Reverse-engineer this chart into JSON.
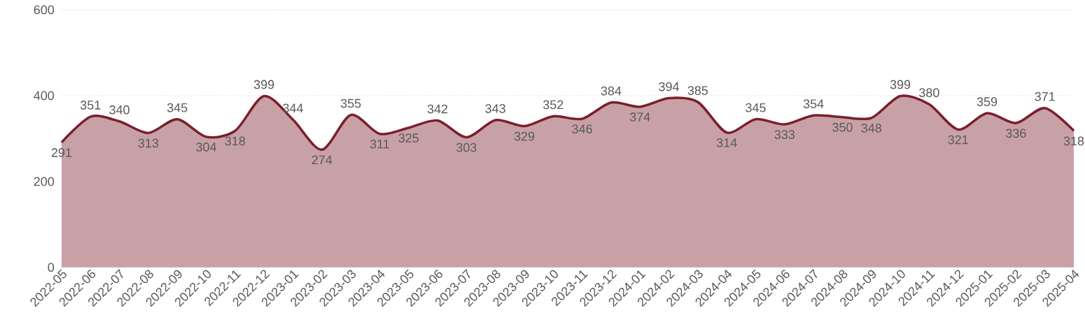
{
  "chart_data": {
    "type": "area",
    "categories": [
      "2022-05",
      "2022-06",
      "2022-07",
      "2022-08",
      "2022-09",
      "2022-10",
      "2022-11",
      "2022-12",
      "2023-01",
      "2023-02",
      "2023-03",
      "2023-04",
      "2023-05",
      "2023-06",
      "2023-07",
      "2023-08",
      "2023-09",
      "2023-10",
      "2023-11",
      "2023-12",
      "2024-01",
      "2024-02",
      "2024-03",
      "2024-04",
      "2024-05",
      "2024-06",
      "2024-07",
      "2024-08",
      "2024-09",
      "2024-10",
      "2024-11",
      "2024-12",
      "2025-01",
      "2025-02",
      "2025-03",
      "2025-04"
    ],
    "series": [
      {
        "color": "#7b1f2a",
        "values": [
          291,
          351,
          340,
          313,
          345,
          304,
          318,
          399,
          344,
          274,
          355,
          311,
          325,
          342,
          303,
          343,
          329,
          352,
          346,
          384,
          374,
          394,
          385,
          314,
          345,
          333,
          354,
          350,
          348,
          399,
          380,
          321,
          359,
          336,
          371,
          318
        ]
      }
    ],
    "ylim": [
      0,
      600
    ],
    "yticks": [
      0,
      200,
      400,
      600
    ],
    "grid": "y",
    "data_labels": true
  }
}
